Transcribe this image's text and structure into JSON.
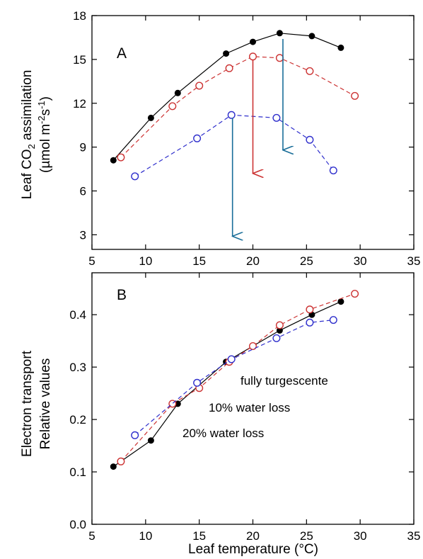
{
  "chart_data": [
    {
      "type": "line",
      "panel_label": "A",
      "ylabel_line1_pre": "Leaf CO",
      "ylabel_line1_sub": "2",
      "ylabel_line1_post": " assimilation",
      "ylabel_line2_pre": "(µmol m",
      "ylabel_line2_sup1": "-2",
      "ylabel_line2_mid": "s",
      "ylabel_line2_sup2": "-1",
      "ylabel_line2_post": ")",
      "xlim": [
        5,
        35
      ],
      "ylim": [
        2,
        18
      ],
      "xticks": [
        5,
        10,
        15,
        20,
        25,
        30,
        35
      ],
      "yticks": [
        3,
        6,
        9,
        12,
        15,
        18
      ],
      "series": [
        {
          "name": "fully turgescente",
          "color": "#000000",
          "marker": "filled",
          "dashed": false,
          "x": [
            7,
            10.5,
            13,
            17.5,
            20,
            22.5,
            25.5,
            28.2
          ],
          "y": [
            8.1,
            11.0,
            12.7,
            15.4,
            16.2,
            16.8,
            16.6,
            15.8
          ]
        },
        {
          "name": "10% water loss",
          "color": "#cc3333",
          "marker": "open",
          "dashed": true,
          "x": [
            7.7,
            12.5,
            15,
            17.8,
            20,
            22.5,
            25.3,
            29.5
          ],
          "y": [
            8.3,
            11.8,
            13.2,
            14.4,
            15.2,
            15.1,
            14.2,
            12.5
          ]
        },
        {
          "name": "20% water loss",
          "color": "#2e2ecc",
          "marker": "open",
          "dashed": true,
          "x": [
            9,
            14.8,
            18,
            22.2,
            25.3,
            27.5
          ],
          "y": [
            7.0,
            9.6,
            11.2,
            11.0,
            9.5,
            7.4
          ]
        }
      ],
      "arrows": [
        {
          "color": "#cc3333",
          "x": 20.0,
          "y_from": 15.0,
          "y_to": 7.2
        },
        {
          "color": "#1a6e99",
          "x": 22.8,
          "y_from": 16.4,
          "y_to": 8.8
        },
        {
          "color": "#1a6e99",
          "x": 18.1,
          "y_from": 11.0,
          "y_to": 2.9
        }
      ]
    },
    {
      "type": "line",
      "panel_label": "B",
      "ylabel_line1": "Electron transport",
      "ylabel_line2": "Relative values",
      "xlabel": "Leaf temperature (°C)",
      "xlim": [
        5,
        35
      ],
      "ylim": [
        0.0,
        0.48
      ],
      "xticks": [
        5,
        10,
        15,
        20,
        25,
        30,
        35
      ],
      "yticks": [
        0.0,
        0.1,
        0.2,
        0.3,
        0.4
      ],
      "ytick_labels": [
        "0.0",
        "0.1",
        "0.2",
        "0.3",
        "0.4"
      ],
      "series": [
        {
          "name": "fully turgescente",
          "color": "#000000",
          "marker": "filled",
          "dashed": false,
          "x": [
            7,
            10.5,
            13,
            17.5,
            20,
            22.5,
            25.5,
            28.2
          ],
          "y": [
            0.11,
            0.16,
            0.23,
            0.31,
            0.34,
            0.37,
            0.4,
            0.425
          ]
        },
        {
          "name": "10% water loss",
          "color": "#cc3333",
          "marker": "open",
          "dashed": true,
          "x": [
            7.7,
            12.5,
            15,
            17.8,
            20,
            22.5,
            25.3,
            29.5
          ],
          "y": [
            0.12,
            0.23,
            0.26,
            0.31,
            0.34,
            0.38,
            0.41,
            0.44
          ]
        },
        {
          "name": "20% water loss",
          "color": "#2e2ecc",
          "marker": "open",
          "dashed": true,
          "x": [
            9,
            14.8,
            18,
            22.2,
            25.3,
            27.5
          ],
          "y": [
            0.17,
            0.27,
            0.315,
            0.355,
            0.385,
            0.39
          ]
        }
      ],
      "legend": [
        {
          "text": "fully turgescente",
          "color": "#000000"
        },
        {
          "text": "10% water loss",
          "color": "#cc3333"
        },
        {
          "text": "20% water loss",
          "color": "#2e2ecc"
        }
      ]
    }
  ]
}
